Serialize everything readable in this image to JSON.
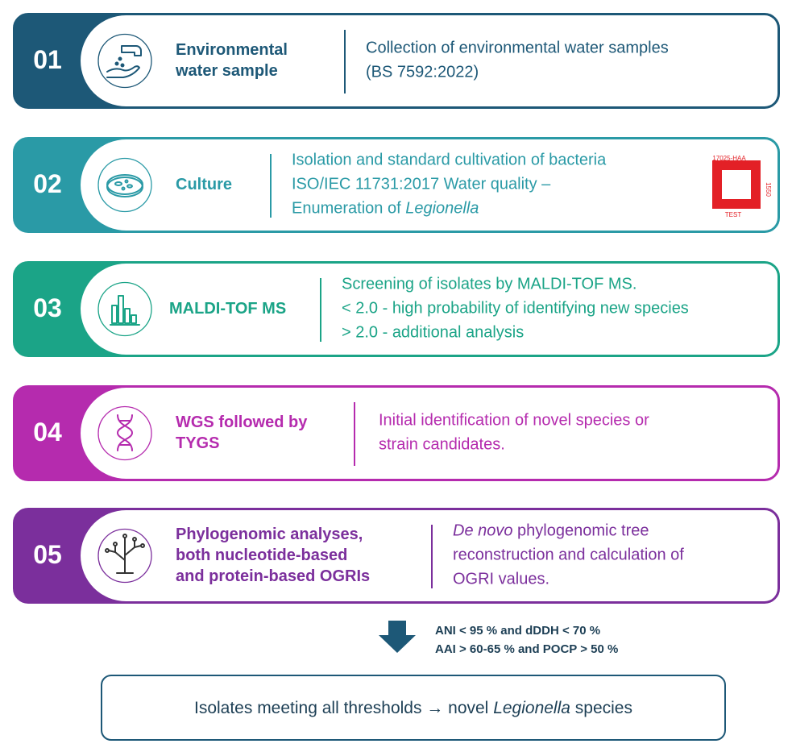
{
  "steps": [
    {
      "number": "01",
      "color": "#1d5877",
      "title": [
        "Environmental",
        "water sample"
      ],
      "description": [
        [
          {
            "text": "Collection of environmental water samples"
          }
        ],
        [
          {
            "text": "(BS 7592:2022)"
          }
        ]
      ]
    },
    {
      "number": "02",
      "color": "#2a9aa6",
      "title": [
        "Culture"
      ],
      "description": [
        [
          {
            "text": "Isolation and standard cultivation of bacteria"
          }
        ],
        [
          {
            "text": "ISO/IEC 11731:2017 Water quality –"
          }
        ],
        [
          {
            "text": "Enumeration of "
          },
          {
            "em": "Legionella"
          }
        ]
      ]
    },
    {
      "number": "03",
      "color": "#1ba487",
      "title": [
        "MALDI-TOF MS"
      ],
      "description": [
        [
          {
            "text": "Screening of isolates by MALDI-TOF MS."
          }
        ],
        [
          {
            "text": "< 2.0 - high probability of identifying new species"
          }
        ],
        [
          {
            "text": "> 2.0 - additional analysis"
          }
        ]
      ]
    },
    {
      "number": "04",
      "color": "#b52bae",
      "title": [
        "WGS followed by",
        "TYGS"
      ],
      "description": [
        [
          {
            "text": "Initial identification of novel species or"
          }
        ],
        [
          {
            "text": "strain candidates."
          }
        ]
      ]
    },
    {
      "number": "05",
      "color": "#7b2f9c",
      "title": [
        "Phylogenomic analyses,",
        "both nucleotide-based",
        "and protein-based OGRIs"
      ],
      "description": [
        [
          {
            "em": "De novo"
          },
          {
            "text": " phylogenomic tree"
          }
        ],
        [
          {
            "text": "reconstruction and calculation of"
          }
        ],
        [
          {
            "text": "OGRI values."
          }
        ]
      ]
    }
  ],
  "accreditation": {
    "top": "17025-HAA",
    "side": "1550",
    "bottom": "TEST"
  },
  "thresholds": [
    "ANI < 95 % and dDDH < 70 %",
    "AAI > 60-65 % and POCP > 50 %"
  ],
  "result": [
    {
      "text": "Isolates meeting all thresholds → novel "
    },
    {
      "em": "Legionella"
    },
    {
      "text": " species"
    }
  ]
}
